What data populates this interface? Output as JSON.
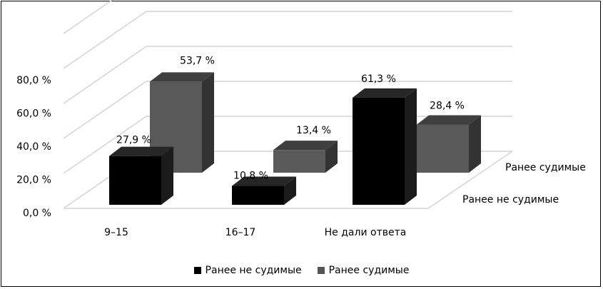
{
  "chart_data": {
    "type": "bar",
    "categories": [
      "9–15",
      "16–17",
      "Не дали ответа"
    ],
    "series": [
      {
        "name": "Ранее не судимые",
        "values": [
          27.9,
          10.8,
          61.3
        ],
        "labels": [
          "27,9 %",
          "10,8 %",
          "61,3 %"
        ],
        "color": "#000000"
      },
      {
        "name": "Ранее судимые",
        "values": [
          53.7,
          13.4,
          28.4
        ],
        "labels": [
          "53,7 %",
          "13,4 %",
          "28,4 %"
        ],
        "color": "#555555"
      }
    ],
    "yticks": [
      "0,0 %",
      "20,0 %",
      "40,0 %",
      "60,0 %",
      "80,0 %"
    ],
    "ylim": [
      0,
      100
    ],
    "depth_axis_labels": [
      "Ранее не судимые",
      "Ранее судимые"
    ],
    "grid": true,
    "legend_position": "bottom"
  }
}
